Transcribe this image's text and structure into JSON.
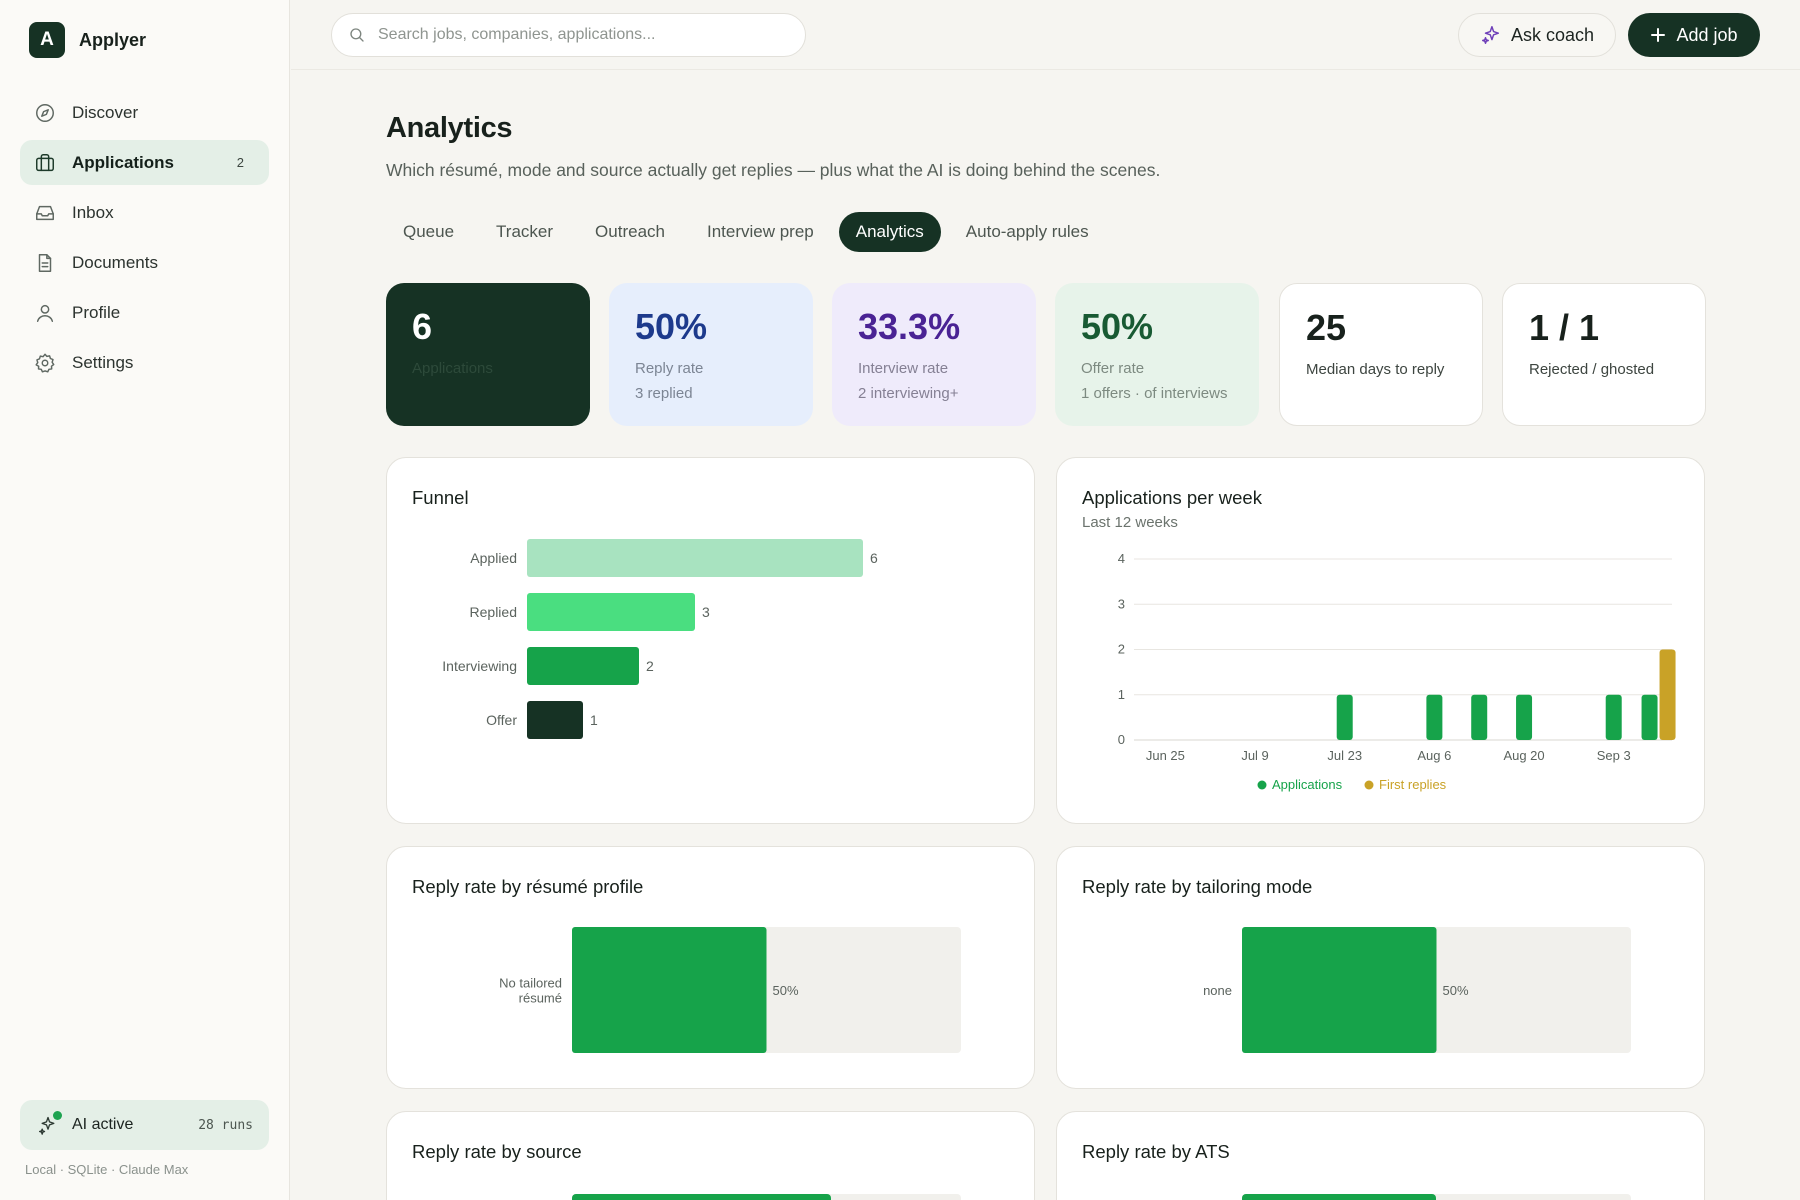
{
  "app": {
    "logo_letter": "A",
    "name": "Applyer"
  },
  "sidebar": {
    "items": [
      {
        "label": "Discover",
        "icon": "compass-icon"
      },
      {
        "label": "Applications",
        "icon": "briefcase-icon",
        "badge": "2",
        "active": true
      },
      {
        "label": "Inbox",
        "icon": "inbox-icon"
      },
      {
        "label": "Documents",
        "icon": "document-icon"
      },
      {
        "label": "Profile",
        "icon": "user-icon"
      },
      {
        "label": "Settings",
        "icon": "gear-icon"
      }
    ],
    "ai_status": {
      "label": "AI active",
      "runs": "28 runs"
    },
    "footnote": "Local · SQLite · Claude Max"
  },
  "header": {
    "search_placeholder": "Search jobs, companies, applications...",
    "ask_coach": "Ask coach",
    "add_job": "Add job"
  },
  "page": {
    "title": "Analytics",
    "subtitle": "Which résumé, mode and source actually get replies — plus what the AI is doing behind the scenes."
  },
  "tabs": [
    {
      "label": "Queue"
    },
    {
      "label": "Tracker"
    },
    {
      "label": "Outreach"
    },
    {
      "label": "Interview prep"
    },
    {
      "label": "Analytics",
      "active": true
    },
    {
      "label": "Auto-apply rules"
    }
  ],
  "kpis": [
    {
      "value": "6",
      "label": "Applications",
      "sub": ""
    },
    {
      "value": "50%",
      "label": "Reply rate",
      "sub": "3 replied"
    },
    {
      "value": "33.3%",
      "label": "Interview rate",
      "sub": "2 interviewing+"
    },
    {
      "value": "50%",
      "label": "Offer rate",
      "sub": "1 offers · of interviews"
    },
    {
      "value": "25",
      "label": "Median days to reply",
      "sub": ""
    },
    {
      "value": "1 / 1",
      "label": "Rejected / ghosted",
      "sub": ""
    }
  ],
  "colors": {
    "brand_dark": "#163224",
    "funnel": [
      "#a8e3c0",
      "#4ade80",
      "#16a34a",
      "#163224"
    ],
    "applications": "#16a34a",
    "first_replies": "#c9a227",
    "track": "#f1f0ec"
  },
  "chart_data": [
    {
      "type": "bar",
      "title": "Funnel",
      "orientation": "horizontal",
      "categories": [
        "Applied",
        "Replied",
        "Interviewing",
        "Offer"
      ],
      "values": [
        6,
        3,
        2,
        1
      ]
    },
    {
      "type": "bar",
      "title": "Applications per week",
      "subtitle": "Last 12 weeks",
      "x": [
        "Jun 25",
        "Jul 2",
        "Jul 9",
        "Jul 16",
        "Jul 23",
        "Jul 30",
        "Aug 6",
        "Aug 13",
        "Aug 20",
        "Aug 27",
        "Sep 3",
        "Sep 10"
      ],
      "x_tick_labels": [
        "Jun 25",
        "Jul 9",
        "Jul 23",
        "Aug 6",
        "Aug 20",
        "Sep 3"
      ],
      "series": [
        {
          "name": "Applications",
          "values": [
            0,
            0,
            0,
            0,
            1,
            0,
            1,
            1,
            1,
            0,
            1,
            1
          ]
        },
        {
          "name": "First replies",
          "values": [
            0,
            0,
            0,
            0,
            0,
            0,
            0,
            0,
            0,
            0,
            0,
            2
          ]
        }
      ],
      "ylim": [
        0,
        4
      ],
      "yticks": [
        0,
        1,
        2,
        3,
        4
      ],
      "grid": true,
      "legend": "bottom-center"
    },
    {
      "type": "bar",
      "title": "Reply rate by résumé profile",
      "orientation": "horizontal",
      "categories": [
        [
          "No tailored",
          "résumé"
        ]
      ],
      "values": [
        50
      ],
      "value_labels": [
        "50%"
      ],
      "xlim": [
        0,
        100
      ]
    },
    {
      "type": "bar",
      "title": "Reply rate by tailoring mode",
      "orientation": "horizontal",
      "categories": [
        "none"
      ],
      "values": [
        50
      ],
      "value_labels": [
        "50%"
      ],
      "xlim": [
        0,
        100
      ]
    },
    {
      "type": "bar",
      "title": "Reply rate by source",
      "orientation": "horizontal"
    },
    {
      "type": "bar",
      "title": "Reply rate by ATS",
      "orientation": "horizontal"
    }
  ]
}
